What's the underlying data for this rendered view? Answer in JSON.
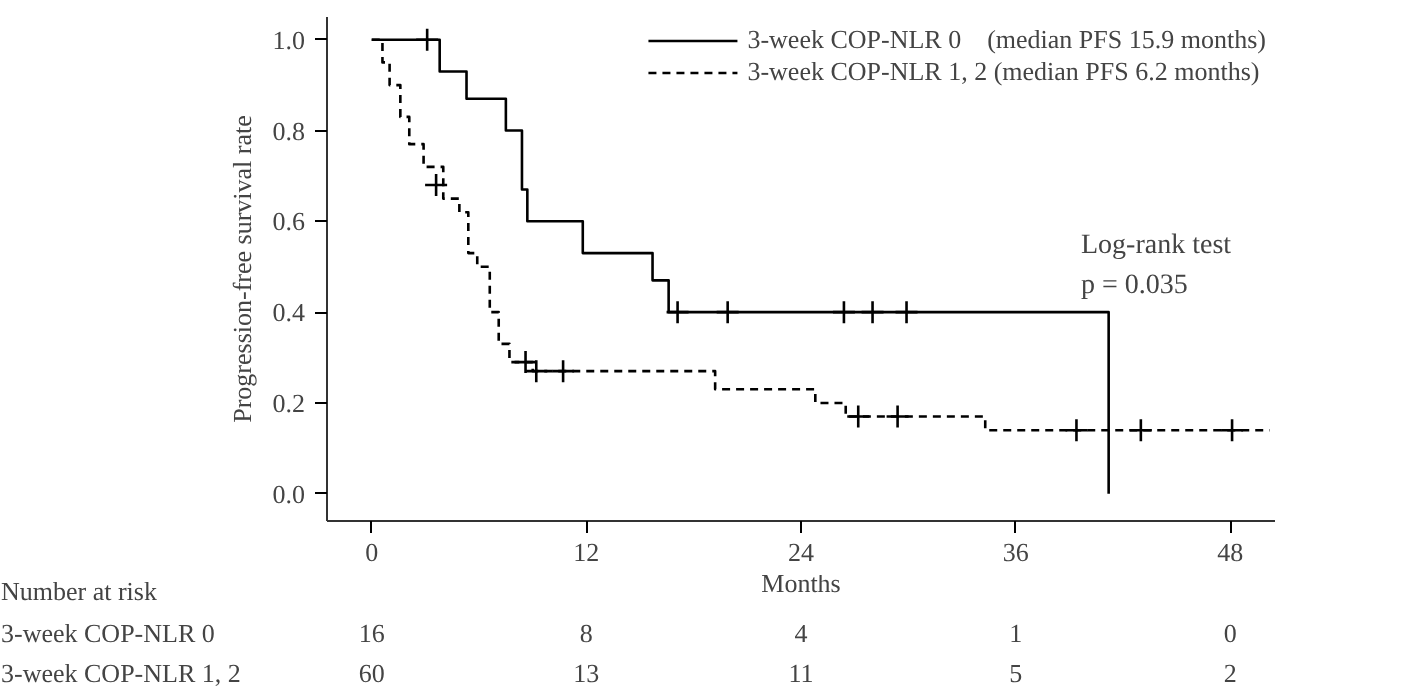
{
  "chart_data": {
    "type": "step",
    "xlabel": "Months",
    "ylabel": "Progression-free survival rate",
    "xlim": [
      -2.5,
      50.5
    ],
    "ylim": [
      -0.06,
      1.05
    ],
    "xticks": [
      0,
      12,
      24,
      36,
      48
    ],
    "yticks": [
      {
        "value": 0,
        "label": "0.0"
      },
      {
        "value": 0.2,
        "label": "0.2"
      },
      {
        "value": 0.4,
        "label": "0.4"
      },
      {
        "value": 0.6,
        "label": "0.6"
      },
      {
        "value": 0.8,
        "label": "0.8"
      },
      {
        "value": 1,
        "label": "1.0"
      }
    ],
    "grid": false,
    "legend": "top right",
    "series": [
      {
        "name": "3-week COP-NLR 0    (median PFS 15.9 months)",
        "color": "#000000",
        "line_style": "solid",
        "x": [
          0,
          3.8,
          5.3,
          7.5,
          8.4,
          8.7,
          11.8,
          15.7,
          16.6,
          41.2
        ],
        "values": [
          1.0,
          0.93,
          0.87,
          0.8,
          0.67,
          0.6,
          0.53,
          0.47,
          0.4,
          0.0
        ]
      },
      {
        "name": "3-week COP-NLR 1, 2 (median PFS 6.2 months)",
        "color": "#000000",
        "line_style": "dashed",
        "x": [
          0,
          0.6,
          1.0,
          1.6,
          2.1,
          2.9,
          4.0,
          4.9,
          5.4,
          5.9,
          6.6,
          7.1,
          7.7,
          9.0,
          19.2,
          24.8,
          26.5,
          34.3,
          50.2
        ],
        "values": [
          1.0,
          0.95,
          0.9,
          0.83,
          0.77,
          0.72,
          0.65,
          0.62,
          0.53,
          0.5,
          0.4,
          0.33,
          0.29,
          0.27,
          0.23,
          0.2,
          0.17,
          0.14,
          0.14
        ]
      },
      {
        "color": "#000000",
        "type": "scatter",
        "marker": "cross",
        "x": [
          3.1,
          17.1,
          19.9,
          26.4,
          28.0,
          29.9
        ],
        "values": [
          1.0,
          0.4,
          0.4,
          0.4,
          0.4,
          0.4
        ]
      },
      {
        "color": "#000000",
        "type": "scatter",
        "marker": "cross",
        "x": [
          3.6,
          8.6,
          9.2,
          10.7,
          27.2,
          29.4,
          39.4,
          43.0,
          48.1
        ],
        "values": [
          0.68,
          0.29,
          0.27,
          0.27,
          0.17,
          0.17,
          0.14,
          0.14,
          0.14
        ]
      }
    ],
    "annotations": [
      "Log-rank test",
      "p = 0.035",
      "Number at risk",
      "3-week COP-NLR 0",
      "16",
      "8",
      "4",
      "1",
      "0",
      "3-week COP-NLR 1, 2",
      "60",
      "13",
      "11",
      "5",
      "2"
    ]
  }
}
